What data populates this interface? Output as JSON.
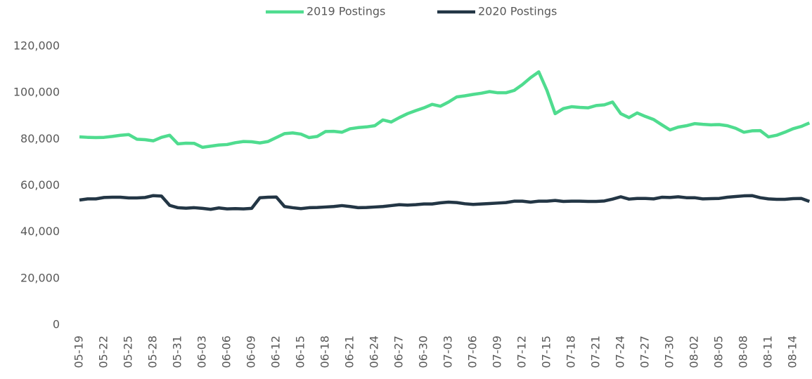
{
  "chart_data": {
    "type": "line",
    "categories": [
      "05-19",
      null,
      null,
      "05-22",
      null,
      null,
      "05-25",
      null,
      null,
      "05-28",
      null,
      null,
      "05-31",
      null,
      null,
      "06-03",
      null,
      null,
      "06-06",
      null,
      null,
      "06-09",
      null,
      null,
      "06-12",
      null,
      null,
      "06-15",
      null,
      null,
      "06-18",
      null,
      null,
      "06-21",
      null,
      null,
      "06-24",
      null,
      null,
      "06-27",
      null,
      null,
      "06-30",
      null,
      null,
      "07-03",
      null,
      null,
      "07-06",
      null,
      null,
      "07-09",
      null,
      null,
      "07-12",
      null,
      null,
      "07-15",
      null,
      null,
      "07-18",
      null,
      null,
      "07-21",
      null,
      null,
      "07-24",
      null,
      null,
      "07-27",
      null,
      null,
      "07-30",
      null,
      null,
      "08-02",
      null,
      null,
      "08-05",
      null,
      null,
      "08-08",
      null,
      null,
      "08-11",
      null,
      null,
      "08-14",
      null,
      null
    ],
    "series": [
      {
        "name": "2019 Postings",
        "color": "#4fdc8f",
        "values": [
          81000,
          80800,
          80700,
          80800,
          81200,
          81700,
          82000,
          80000,
          79800,
          79300,
          80800,
          81700,
          78000,
          78300,
          78200,
          76500,
          77000,
          77500,
          77700,
          78500,
          79000,
          78900,
          78400,
          79000,
          80700,
          82400,
          82700,
          82200,
          80700,
          81200,
          83300,
          83400,
          83000,
          84500,
          85000,
          85300,
          85800,
          88300,
          87400,
          89300,
          91000,
          92300,
          93500,
          95000,
          94200,
          96000,
          98200,
          98700,
          99300,
          99800,
          100500,
          100000,
          100000,
          101000,
          103500,
          106500,
          109000,
          101000,
          91000,
          93200,
          94000,
          93700,
          93500,
          94500,
          94800,
          96000,
          91000,
          89300,
          91300,
          89800,
          88500,
          86200,
          84000,
          85200,
          85800,
          86700,
          86400,
          86200,
          86300,
          85800,
          84700,
          83000,
          83600,
          83700,
          81000,
          81700,
          83000,
          84500,
          85500,
          87000
        ]
      },
      {
        "name": "2020 Postings",
        "color": "#233645",
        "values": [
          53800,
          54300,
          54300,
          54900,
          55000,
          55000,
          54700,
          54700,
          54900,
          55700,
          55500,
          51500,
          50500,
          50300,
          50500,
          50200,
          49800,
          50400,
          50000,
          50100,
          50000,
          50200,
          54800,
          55000,
          55100,
          51000,
          50500,
          50100,
          50500,
          50600,
          50800,
          51000,
          51400,
          51000,
          50500,
          50600,
          50800,
          51000,
          51400,
          51800,
          51600,
          51800,
          52100,
          52100,
          52600,
          52900,
          52700,
          52200,
          51900,
          52100,
          52300,
          52500,
          52700,
          53300,
          53300,
          52900,
          53300,
          53300,
          53600,
          53200,
          53300,
          53300,
          53200,
          53200,
          53400,
          54200,
          55200,
          54200,
          54500,
          54500,
          54300,
          55000,
          54900,
          55200,
          54800,
          54800,
          54300,
          54400,
          54500,
          55000,
          55300,
          55600,
          55700,
          54800,
          54300,
          54100,
          54100,
          54400,
          54500,
          53200
        ]
      }
    ],
    "ylim": [
      0,
      120000
    ],
    "yticks": [
      0,
      {
        "value": 20000,
        "label": "20,000"
      },
      {
        "value": 40000,
        "label": "40,000"
      },
      {
        "value": 60000,
        "label": "60,000"
      },
      {
        "value": 80000,
        "label": "80,000"
      },
      {
        "value": 100000,
        "label": "100,000"
      },
      {
        "value": 120000,
        "label": "120,000"
      }
    ],
    "grid": false,
    "legend": "top"
  }
}
